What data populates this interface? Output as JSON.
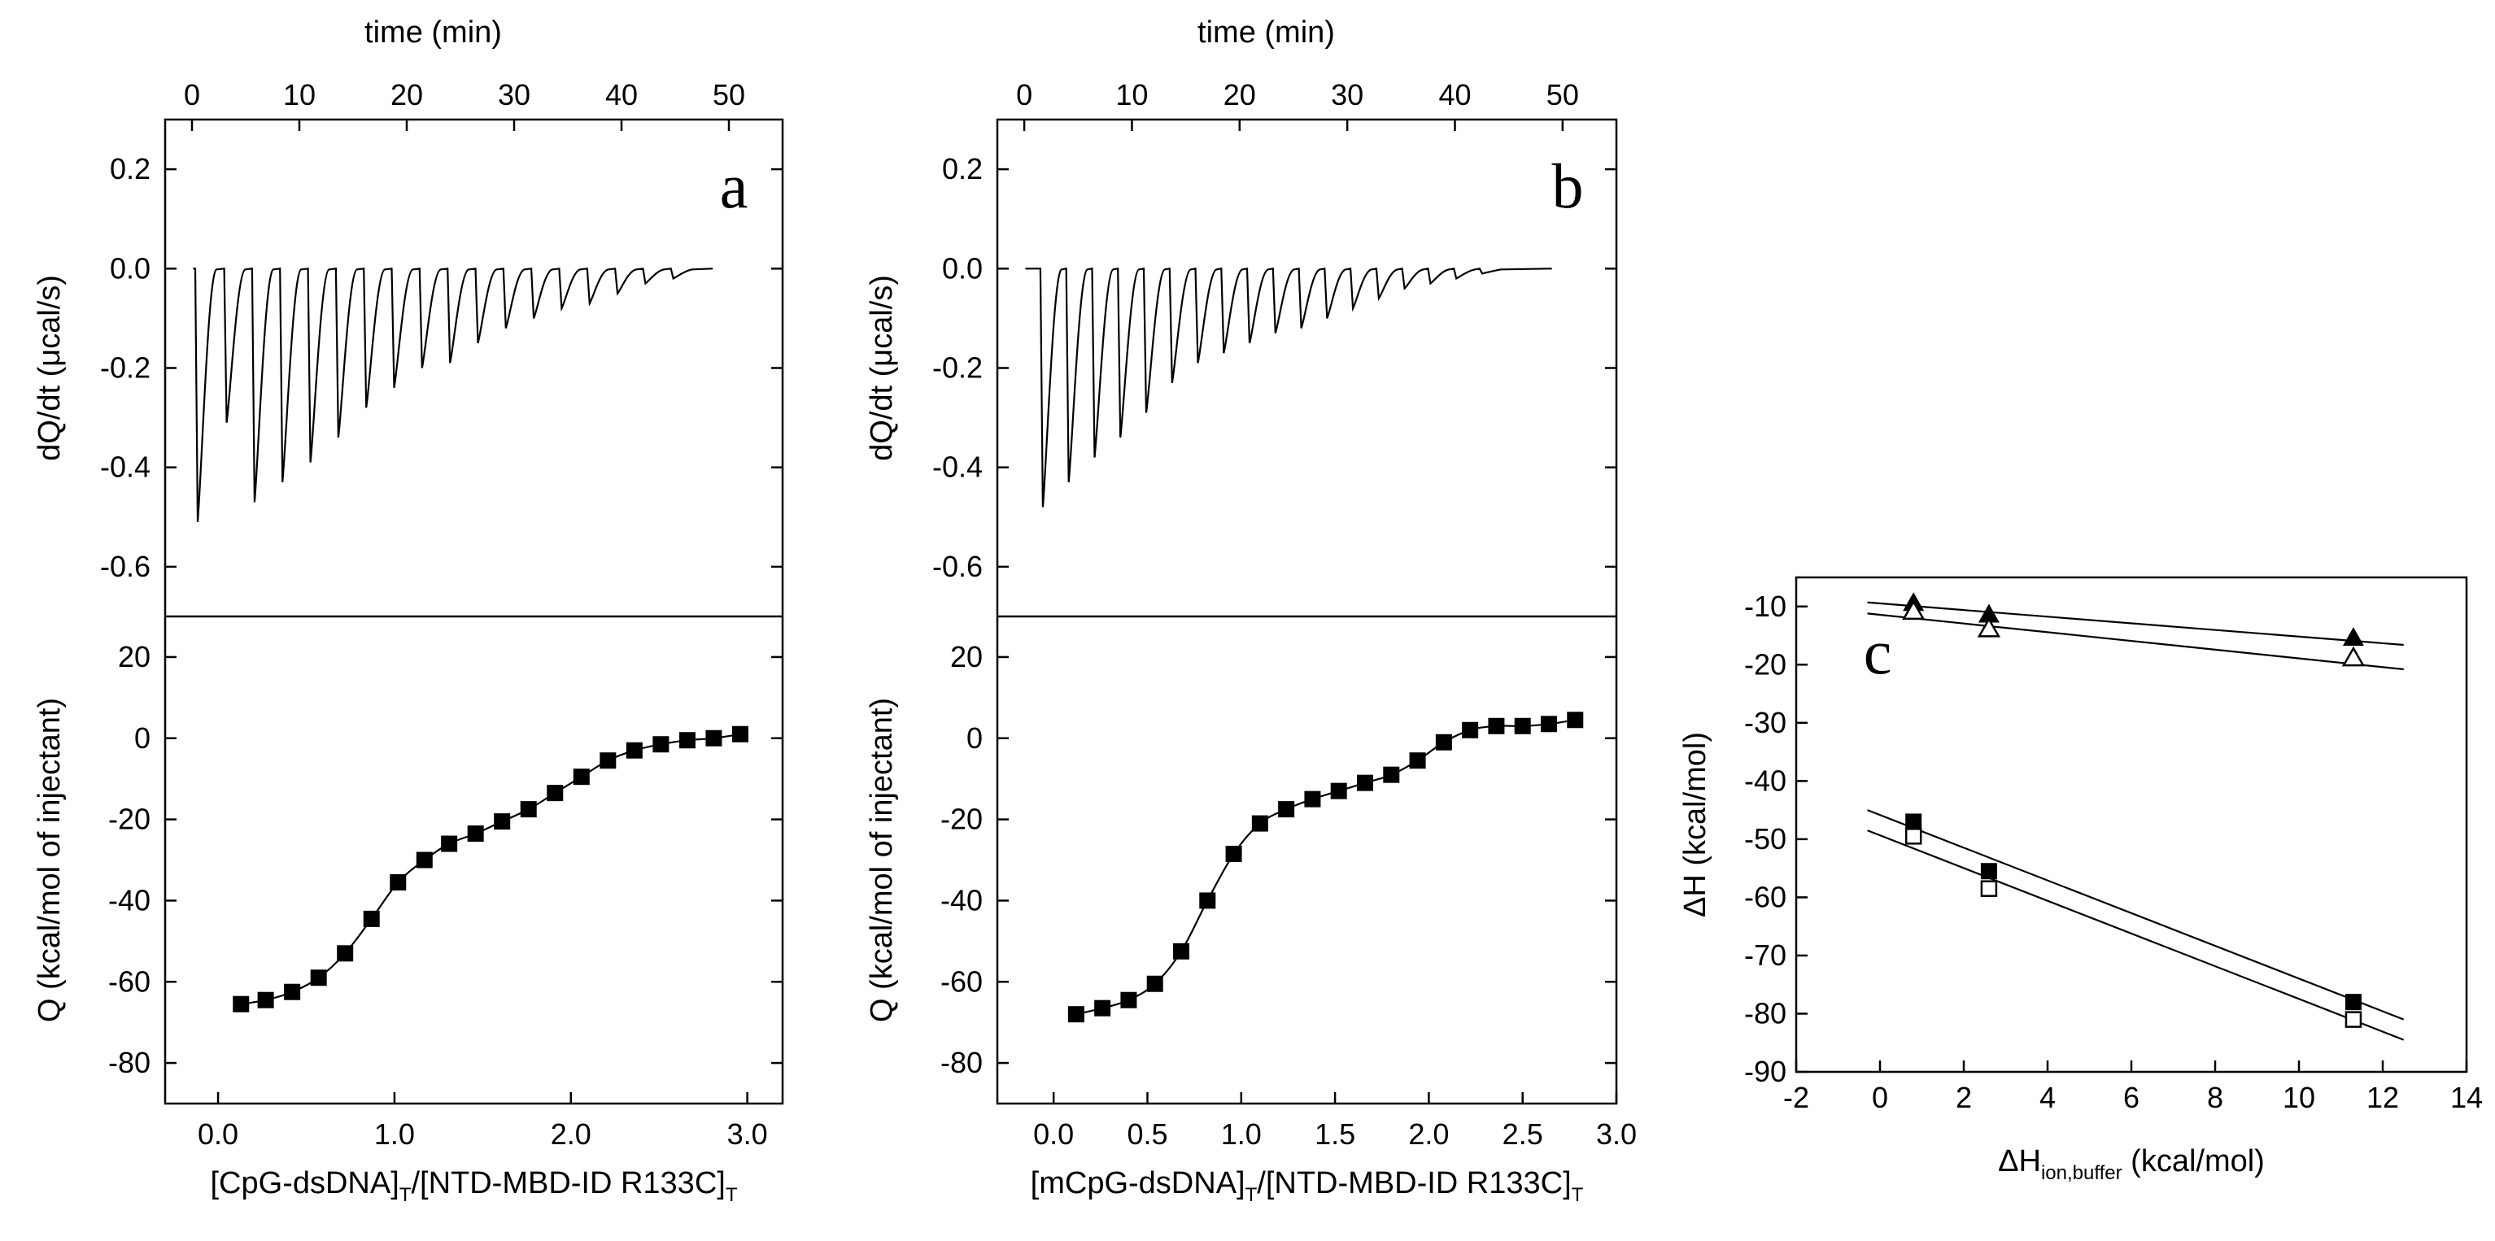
{
  "chart_data": [
    {
      "id": "a",
      "type": "line",
      "panel_label": "a",
      "top": {
        "title": "",
        "top_xlabel": "time (min)",
        "top_xticks": [
          0,
          10,
          20,
          30,
          40,
          50
        ],
        "xlim": [
          -2.5,
          55
        ],
        "ylabel": "dQ/dt (μcal/s)",
        "ylim": [
          -0.7,
          0.3
        ],
        "yticks": [
          0.2,
          0.0,
          -0.2,
          -0.4,
          -0.6
        ],
        "ytick_labels": [
          "0.2",
          "0.0",
          "-0.2",
          "-0.4",
          "-0.6"
        ],
        "baseline_start": 0.1,
        "baseline_end": 48.5,
        "series": [
          {
            "name": "raw heat",
            "injection_times": [
              0.3,
              3.0,
              5.6,
              8.2,
              10.8,
              13.4,
              16.0,
              18.6,
              21.2,
              23.8,
              26.4,
              29.0,
              31.6,
              34.2,
              36.8,
              39.4,
              42.0,
              44.6
            ],
            "peaks": [
              -0.51,
              -0.31,
              -0.47,
              -0.43,
              -0.39,
              -0.34,
              -0.28,
              -0.24,
              -0.2,
              -0.19,
              -0.15,
              -0.12,
              -0.1,
              -0.08,
              -0.07,
              -0.05,
              -0.03,
              -0.02
            ]
          }
        ]
      },
      "bottom": {
        "xlabel_main": "[CpG-dsDNA]",
        "xlabel_mid": "/[NTD-MBD-ID R133C]",
        "xlabel_sub": "T",
        "xlim": [
          -0.3,
          3.2
        ],
        "xticks": [
          0.0,
          1.0,
          2.0,
          3.0
        ],
        "xtick_labels": [
          "0.0",
          "1.0",
          "2.0",
          "3.0"
        ],
        "ylabel": "Q (kcal/mol of injectant)",
        "ylim": [
          -90,
          30
        ],
        "yticks": [
          20,
          0,
          -20,
          -40,
          -60,
          -80
        ],
        "ytick_labels": [
          "20",
          "0",
          "-20",
          "-40",
          "-60",
          "-80"
        ],
        "series": [
          {
            "name": "integrated heats",
            "x": [
              0.13,
              0.27,
              0.42,
              0.57,
              0.72,
              0.87,
              1.02,
              1.17,
              1.31,
              1.46,
              1.61,
              1.76,
              1.91,
              2.06,
              2.21,
              2.36,
              2.51,
              2.66,
              2.81,
              2.96
            ],
            "y": [
              -65.5,
              -64.5,
              -62.5,
              -59,
              -53,
              -44.5,
              -35.5,
              -30,
              -26,
              -23.5,
              -20.5,
              -17.5,
              -13.5,
              -9.5,
              -5.5,
              -3,
              -1.5,
              -0.5,
              0,
              1
            ]
          }
        ]
      }
    },
    {
      "id": "b",
      "type": "line",
      "panel_label": "b",
      "top": {
        "title": "",
        "top_xlabel": "time (min)",
        "top_xticks": [
          0,
          10,
          20,
          30,
          40,
          50
        ],
        "xlim": [
          -2.5,
          55
        ],
        "ylabel": "dQ/dt (μcal/s)",
        "ylim": [
          -0.7,
          0.3
        ],
        "yticks": [
          0.2,
          0.0,
          -0.2,
          -0.4,
          -0.6
        ],
        "ytick_labels": [
          "0.2",
          "0.0",
          "-0.2",
          "-0.4",
          "-0.6"
        ],
        "baseline_start": 0.1,
        "baseline_end": 49,
        "series": [
          {
            "name": "raw heat",
            "injection_times": [
              1.5,
              3.9,
              6.3,
              8.7,
              11.1,
              13.5,
              15.9,
              18.3,
              20.7,
              23.1,
              25.5,
              27.9,
              30.3,
              32.7,
              35.1,
              37.5,
              39.9,
              42.3
            ],
            "peaks": [
              -0.48,
              -0.43,
              -0.38,
              -0.34,
              -0.29,
              -0.23,
              -0.19,
              -0.17,
              -0.15,
              -0.13,
              -0.12,
              -0.1,
              -0.08,
              -0.06,
              -0.04,
              -0.03,
              -0.02,
              -0.01
            ]
          }
        ]
      },
      "bottom": {
        "xlabel_main": "[mCpG-dsDNA]",
        "xlabel_mid": "/[NTD-MBD-ID R133C]",
        "xlabel_sub": "T",
        "xlim": [
          -0.3,
          3.0
        ],
        "xticks": [
          0.0,
          0.5,
          1.0,
          1.5,
          2.0,
          2.5,
          3.0
        ],
        "xtick_labels": [
          "0.0",
          "0.5",
          "1.0",
          "1.5",
          "2.0",
          "2.5",
          "3.0"
        ],
        "ylabel": "Q (kcal/mol of injectant)",
        "ylim": [
          -90,
          30
        ],
        "yticks": [
          20,
          0,
          -20,
          -40,
          -60,
          -80
        ],
        "ytick_labels": [
          "20",
          "0",
          "-20",
          "-40",
          "-60",
          "-80"
        ],
        "series": [
          {
            "name": "integrated heats",
            "x": [
              0.12,
              0.26,
              0.4,
              0.54,
              0.68,
              0.82,
              0.96,
              1.1,
              1.24,
              1.38,
              1.52,
              1.66,
              1.8,
              1.94,
              2.08,
              2.22,
              2.36,
              2.5,
              2.64,
              2.78
            ],
            "y": [
              -68,
              -66.5,
              -64.5,
              -60.5,
              -52.5,
              -40,
              -28.5,
              -21,
              -17.5,
              -15,
              -13,
              -11,
              -9,
              -5.5,
              -1,
              2,
              3,
              3,
              3.5,
              4.5
            ]
          }
        ]
      }
    },
    {
      "id": "c",
      "type": "scatter",
      "panel_label": "c",
      "xlabel_main": "ΔH",
      "xlabel_sub": "ion,buffer",
      "xlabel_unit": " (kcal/mol)",
      "ylabel": "ΔH (kcal/mol)",
      "xlim": [
        -2,
        14
      ],
      "ylim": [
        -90,
        -5
      ],
      "xticks": [
        -2,
        0,
        2,
        4,
        6,
        8,
        10,
        12,
        14
      ],
      "xtick_labels": [
        "-2",
        "0",
        "2",
        "4",
        "6",
        "8",
        "10",
        "12",
        "14"
      ],
      "yticks": [
        -10,
        -20,
        -30,
        -40,
        -50,
        -60,
        -70,
        -80,
        -90
      ],
      "ytick_labels": [
        "-10",
        "-20",
        "-30",
        "-40",
        "-50",
        "-60",
        "-70",
        "-80",
        "-90"
      ],
      "series": [
        {
          "name": "filled triangles",
          "marker": "triangle-filled",
          "x": [
            0.8,
            2.6,
            11.3
          ],
          "y": [
            -9.5,
            -11.5,
            -15.5
          ],
          "fit": [
            -0.3,
            -9.3,
            12.5,
            -16.6
          ]
        },
        {
          "name": "open triangles",
          "marker": "triangle-open",
          "x": [
            0.8,
            2.6,
            11.3
          ],
          "y": [
            -11,
            -14,
            -19
          ],
          "fit": [
            -0.3,
            -11.2,
            12.5,
            -20.8
          ]
        },
        {
          "name": "filled squares",
          "marker": "square-filled",
          "x": [
            0.8,
            2.6,
            11.3
          ],
          "y": [
            -47,
            -55.5,
            -78
          ],
          "fit": [
            -0.3,
            -45,
            12.5,
            -81
          ]
        },
        {
          "name": "open squares",
          "marker": "square-open",
          "x": [
            0.8,
            2.6,
            11.3
          ],
          "y": [
            -49.5,
            -58.5,
            -81
          ],
          "fit": [
            -0.3,
            -48.5,
            12.5,
            -84.5
          ]
        }
      ]
    }
  ]
}
